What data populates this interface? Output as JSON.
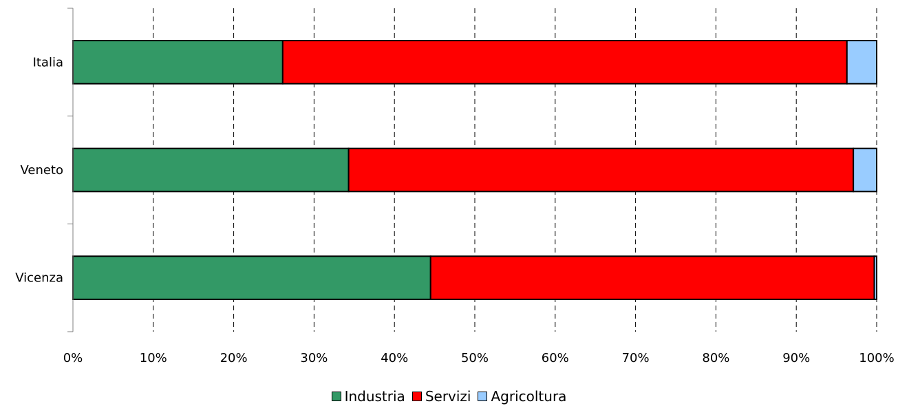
{
  "chart_data": {
    "type": "bar",
    "orientation": "horizontal",
    "stacked": "percent",
    "categories": [
      "Italia",
      "Veneto",
      "Vicenza"
    ],
    "series": [
      {
        "name": "Industria",
        "color": "#339966",
        "values": [
          26.1,
          34.3,
          44.5
        ]
      },
      {
        "name": "Servizi",
        "color": "#ff0000",
        "values": [
          70.2,
          62.8,
          55.2
        ]
      },
      {
        "name": "Agricoltura",
        "color": "#99ccff",
        "values": [
          3.7,
          2.9,
          0.3
        ]
      }
    ],
    "xlim": [
      0,
      100
    ],
    "x_ticks": [
      "0%",
      "10%",
      "20%",
      "30%",
      "40%",
      "50%",
      "60%",
      "70%",
      "80%",
      "90%",
      "100%"
    ],
    "grid": "vertical dashed",
    "legend_position": "bottom"
  }
}
